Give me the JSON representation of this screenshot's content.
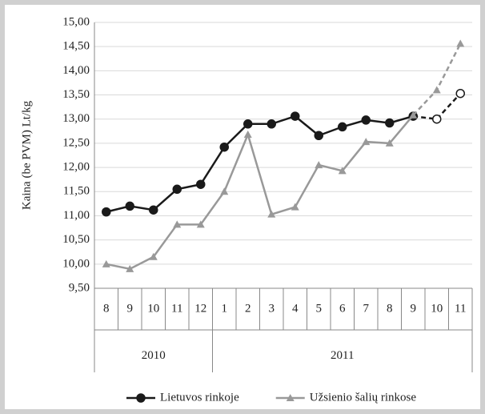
{
  "chart_data": {
    "type": "line",
    "y_label": "Kaina (be PVM) Lt/kg",
    "categories": [
      "8",
      "9",
      "10",
      "11",
      "12",
      "1",
      "2",
      "3",
      "4",
      "5",
      "6",
      "7",
      "8",
      "9",
      "10",
      "11"
    ],
    "group_labels": [
      "2010",
      "2011"
    ],
    "group_sizes": [
      5,
      11
    ],
    "series": [
      {
        "name": "Lietuvos rinkoje",
        "color": "#1a1a1a",
        "marker": "circle",
        "dashed_from": 13,
        "values": [
          11.08,
          11.2,
          11.12,
          11.55,
          11.65,
          12.42,
          12.9,
          12.9,
          13.06,
          12.66,
          12.84,
          12.98,
          12.92,
          13.06,
          13.0,
          13.53
        ]
      },
      {
        "name": "Užsienio šalių rinkose",
        "color": "#999999",
        "marker": "triangle",
        "dashed_from": 13,
        "values": [
          10.0,
          9.9,
          10.15,
          10.82,
          10.82,
          11.5,
          12.68,
          11.03,
          11.18,
          12.05,
          11.93,
          12.53,
          12.5,
          13.08,
          13.6,
          14.56
        ]
      }
    ],
    "ylim": [
      9.5,
      15
    ],
    "yticks": [
      {
        "value": 9.5,
        "label": "9,50"
      },
      {
        "value": 10,
        "label": "10,00"
      },
      {
        "value": 10.5,
        "label": "10,50"
      },
      {
        "value": 11,
        "label": "11,00"
      },
      {
        "value": 11.5,
        "label": "11,50"
      },
      {
        "value": 12,
        "label": "12,00"
      },
      {
        "value": 12.5,
        "label": "12,50"
      },
      {
        "value": 13,
        "label": "13,00"
      },
      {
        "value": 13.5,
        "label": "13,50"
      },
      {
        "value": 14,
        "label": "14,00"
      },
      {
        "value": 14.5,
        "label": "14,50"
      },
      {
        "value": 15,
        "label": "15,00"
      }
    ],
    "grid": true
  }
}
